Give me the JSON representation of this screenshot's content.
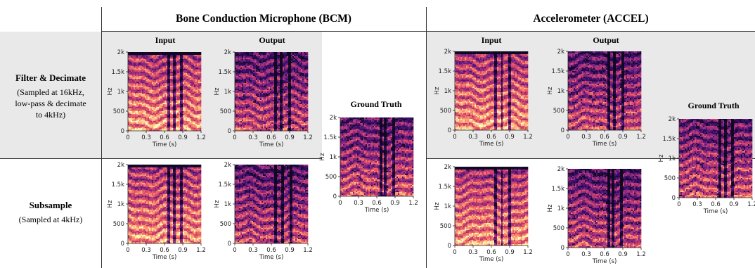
{
  "groups": [
    {
      "title": "Bone Conduction Microphone (BCM)"
    },
    {
      "title": "Accelerometer (ACCEL)"
    }
  ],
  "rows": [
    {
      "title": "Filter & Decimate",
      "subtitle_lines": [
        "(Sampled at 16kHz,",
        "low-pass & decimate",
        "to 4kHz)"
      ]
    },
    {
      "title": "Subsample",
      "subtitle_lines": [
        "(Sampled at 4kHz)"
      ]
    }
  ],
  "columns": {
    "input": "Input",
    "output": "Output",
    "ground_truth": "Ground Truth"
  },
  "chart_data": {
    "type": "heatmap",
    "kind": "spectrogram",
    "xlabel": "Time (s)",
    "ylabel": "Hz",
    "xlim": [
      0,
      1.2
    ],
    "ylim": [
      0,
      2000
    ],
    "x_ticks": [
      "0",
      "0.3",
      "0.6",
      "0.9",
      "1.2"
    ],
    "y_ticks": [
      "0",
      "500",
      "1k",
      "1.5k",
      "2k"
    ],
    "colormap": [
      "#100820",
      "#3b0f70",
      "#8c2981",
      "#de4968",
      "#fe9f6d",
      "#fcfdbf"
    ],
    "panels": [
      {
        "group": "Bone Conduction Microphone (BCM)",
        "row": "Filter & Decimate",
        "column": "Input"
      },
      {
        "group": "Bone Conduction Microphone (BCM)",
        "row": "Filter & Decimate",
        "column": "Output"
      },
      {
        "group": "Bone Conduction Microphone (BCM)",
        "row": "Subsample",
        "column": "Input"
      },
      {
        "group": "Bone Conduction Microphone (BCM)",
        "row": "Subsample",
        "column": "Output"
      },
      {
        "group": "Bone Conduction Microphone (BCM)",
        "column": "Ground Truth"
      },
      {
        "group": "Accelerometer (ACCEL)",
        "row": "Filter & Decimate",
        "column": "Input"
      },
      {
        "group": "Accelerometer (ACCEL)",
        "row": "Filter & Decimate",
        "column": "Output"
      },
      {
        "group": "Accelerometer (ACCEL)",
        "row": "Subsample",
        "column": "Input"
      },
      {
        "group": "Accelerometer (ACCEL)",
        "row": "Subsample",
        "column": "Output"
      },
      {
        "group": "Accelerometer (ACCEL)",
        "column": "Ground Truth"
      }
    ]
  }
}
